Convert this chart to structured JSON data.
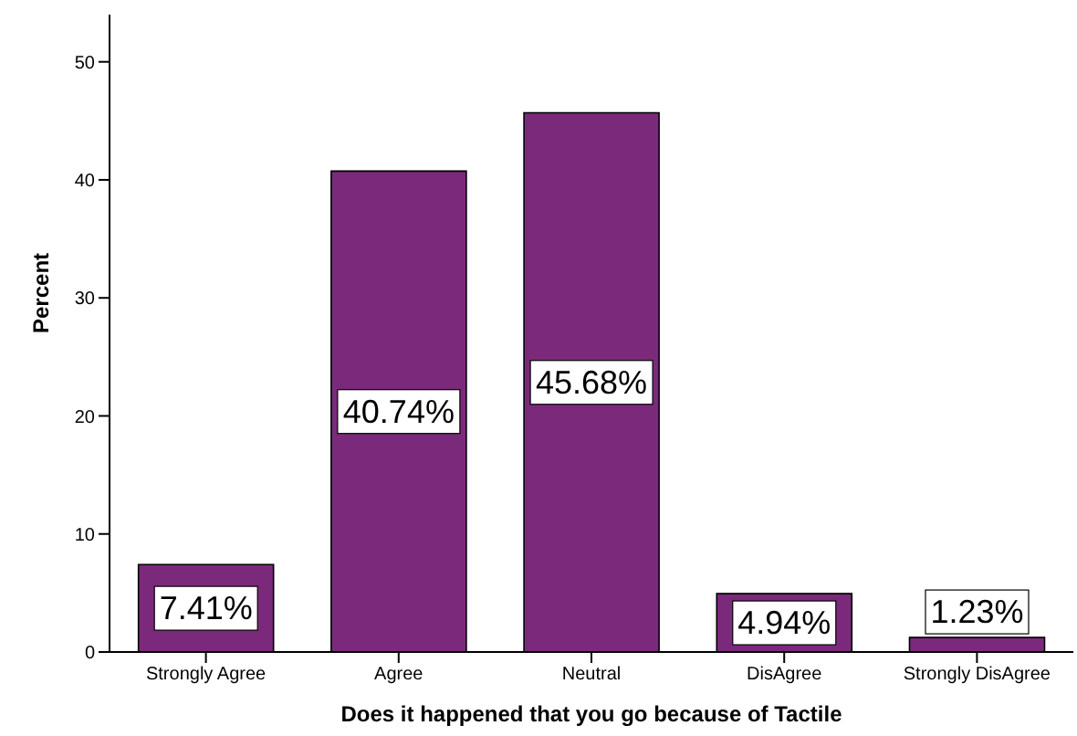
{
  "chart_data": {
    "type": "bar",
    "xlabel": "Does it happened that you go because of Tactile",
    "ylabel": "Percent",
    "categories": [
      "Strongly Agree",
      "Agree",
      "Neutral",
      "DisAgree",
      "Strongly DisAgree"
    ],
    "values": [
      7.41,
      40.74,
      45.68,
      4.94,
      1.23
    ],
    "value_labels": [
      "7.41%",
      "40.74%",
      "45.68%",
      "4.94%",
      "1.23%"
    ],
    "color": "#7b2a7b",
    "ylim": [
      0,
      54
    ],
    "yticks": [
      0,
      10,
      20,
      30,
      40,
      50
    ],
    "grid": false,
    "legend": false
  }
}
